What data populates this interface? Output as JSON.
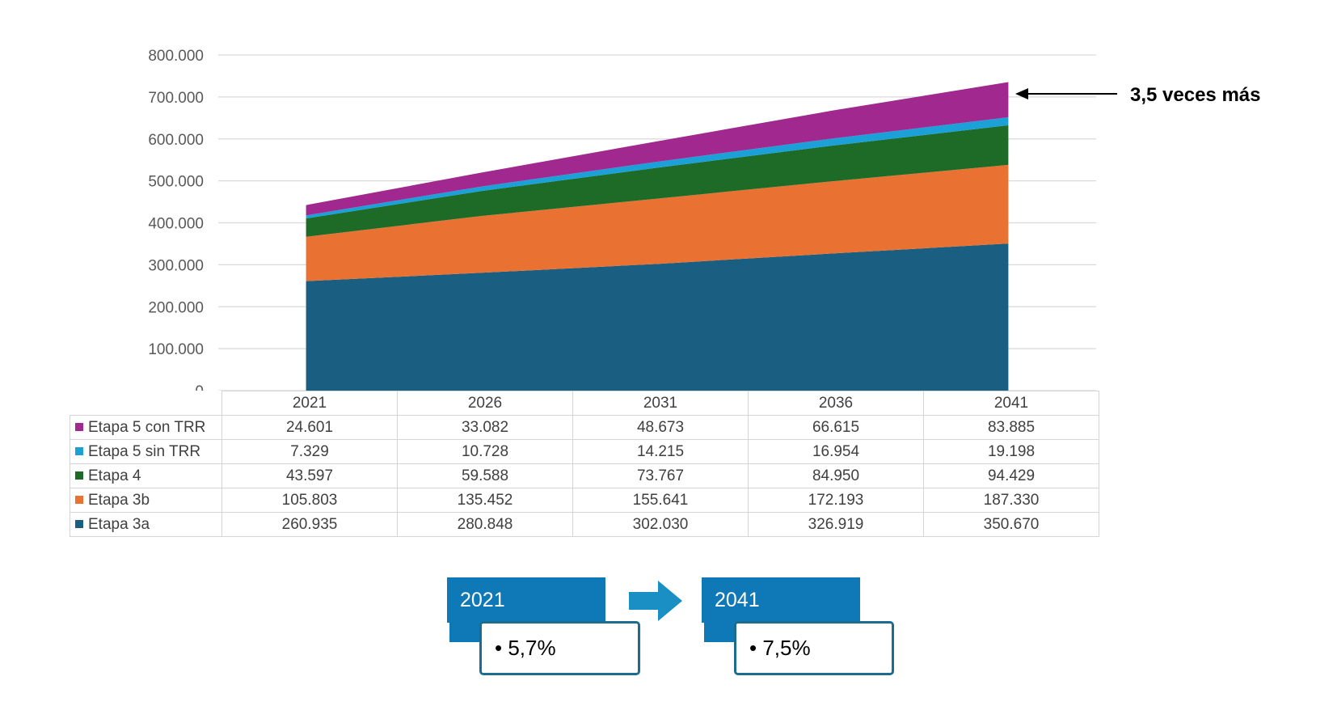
{
  "chart_data": {
    "type": "area",
    "stacked": true,
    "categories": [
      "2021",
      "2026",
      "2031",
      "2036",
      "2041"
    ],
    "series": [
      {
        "name": "Etapa 3a",
        "values": [
          260935,
          280848,
          302030,
          326919,
          350670
        ],
        "color": "#1a5f82"
      },
      {
        "name": "Etapa 3b",
        "values": [
          105803,
          135452,
          155641,
          172193,
          187330
        ],
        "color": "#e97132"
      },
      {
        "name": "Etapa 4",
        "values": [
          43597,
          59588,
          73767,
          84950,
          94429
        ],
        "color": "#1e6b28"
      },
      {
        "name": "Etapa 5 sin TRR",
        "values": [
          7329,
          10728,
          14215,
          16954,
          19198
        ],
        "color": "#1ba0d8"
      },
      {
        "name": "Etapa 5 con TRR",
        "values": [
          24601,
          33082,
          48673,
          66615,
          83885
        ],
        "color": "#a0288f"
      }
    ],
    "y_ticks": [
      "0",
      "100.000",
      "200.000",
      "300.000",
      "400.000",
      "500.000",
      "600.000",
      "700.000",
      "800.000"
    ],
    "ylim": [
      0,
      800000
    ],
    "grid": true,
    "legend": "data-table below chart",
    "annotation": "3,5 veces más"
  },
  "table": {
    "rows": [
      {
        "label": "Etapa 5 con TRR",
        "color": "#a0288f",
        "values": [
          "24.601",
          "33.082",
          "48.673",
          "66.615",
          "83.885"
        ]
      },
      {
        "label": "Etapa 5 sin TRR",
        "color": "#1ba0d8",
        "values": [
          "7.329",
          "10.728",
          "14.215",
          "16.954",
          "19.198"
        ]
      },
      {
        "label": "Etapa 4",
        "color": "#1e6b28",
        "values": [
          "43.597",
          "59.588",
          "73.767",
          "84.950",
          "94.429"
        ]
      },
      {
        "label": "Etapa 3b",
        "color": "#e97132",
        "values": [
          "105.803",
          "135.452",
          "155.641",
          "172.193",
          "187.330"
        ]
      },
      {
        "label": "Etapa 3a",
        "color": "#1a5f82",
        "values": [
          "260.935",
          "280.848",
          "302.030",
          "326.919",
          "350.670"
        ]
      }
    ]
  },
  "comparison": {
    "start": {
      "year": "2021",
      "value": "• 5,7%"
    },
    "end": {
      "year": "2041",
      "value": "• 7,5%"
    }
  }
}
